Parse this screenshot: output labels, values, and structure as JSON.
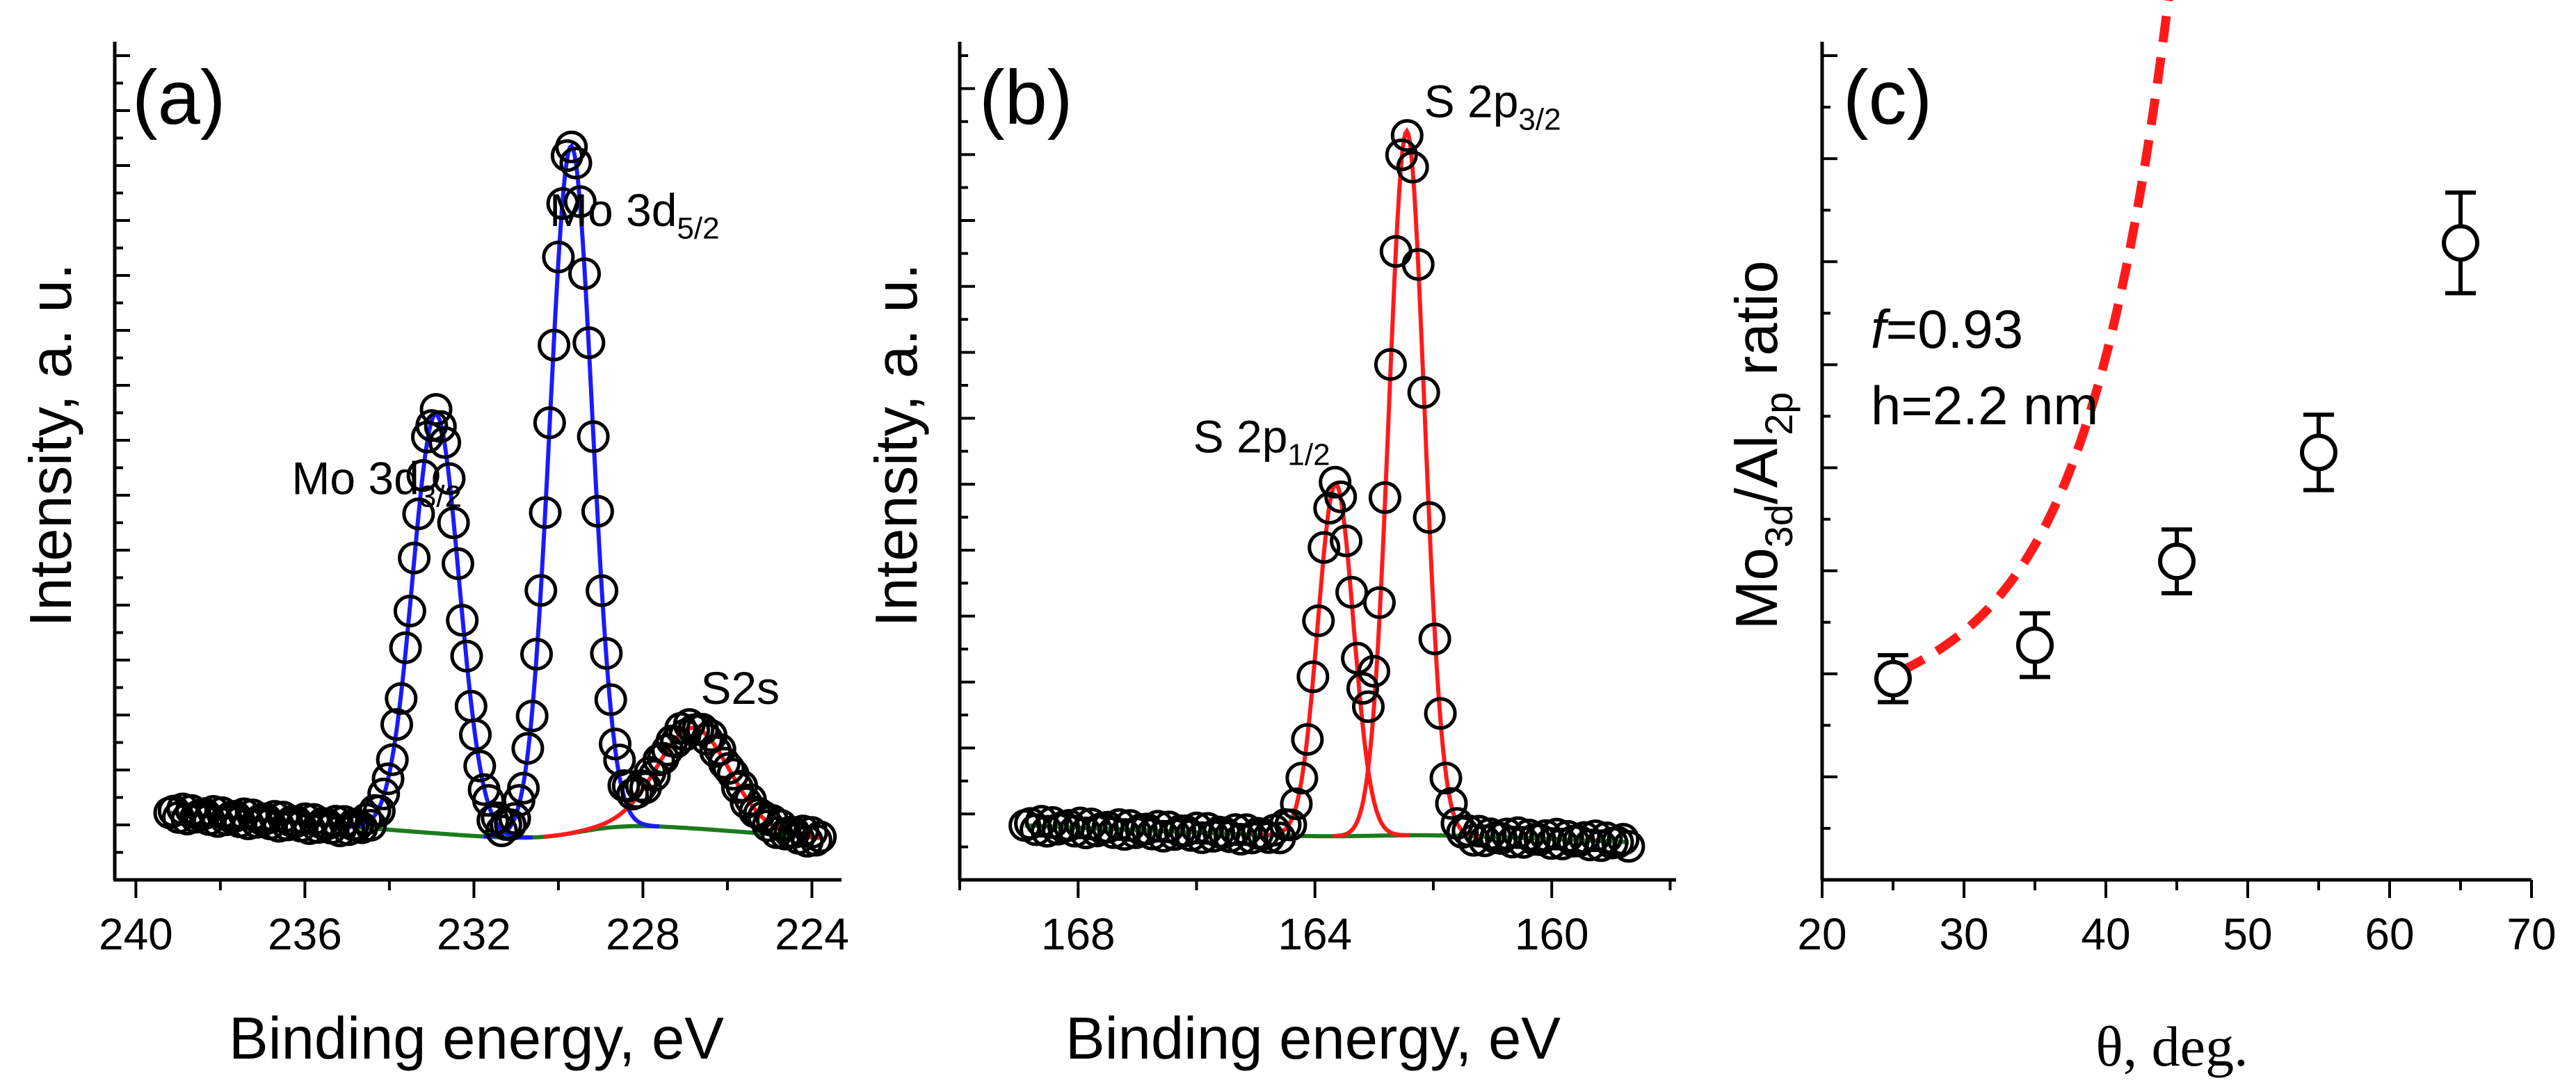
{
  "colors": {
    "axis": "#000000",
    "points": "#000000",
    "mo_fit": "#1a1aff",
    "s_fit": "#ff1a1a",
    "background_line": "#1d7a1d",
    "dashed_fit": "#ff1a1a"
  },
  "chart_data": [
    {
      "panel_label": "(a)",
      "type": "line",
      "xlabel": "Binding energy, eV",
      "ylabel": "Intensity, a. u.",
      "x_reversed": true,
      "xlim": [
        240.5,
        223.3
      ],
      "ylim": [
        0,
        1.0
      ],
      "x_ticks": [
        240,
        236,
        232,
        228,
        224
      ],
      "x_tick_labels": [
        "240",
        "236",
        "232",
        "228",
        "224"
      ],
      "background": {
        "name": "background",
        "start": 0.11,
        "end": 0.05,
        "step_center": 229.5,
        "step_height": 0.03
      },
      "peaks": [
        {
          "name": "Mo 3d3/2",
          "center": 232.9,
          "height": 0.5,
          "width": 0.55,
          "fit_color": "mo"
        },
        {
          "name": "Mo 3d5/2",
          "center": 229.7,
          "height": 0.82,
          "width": 0.5,
          "fit_color": "mo"
        },
        {
          "name": "S2s",
          "center": 226.8,
          "height": 0.12,
          "width": 0.85,
          "fit_color": "s"
        }
      ],
      "points_range": [
        239.2,
        223.8
      ],
      "points_count": 150,
      "annotations": [
        {
          "base": "Mo 3d",
          "sub": "3/2",
          "x": 234.3,
          "y": 0.46
        },
        {
          "base": "Mo 3d",
          "sub": "5/2",
          "x": 228.2,
          "y": 0.78
        },
        {
          "base": "S2s",
          "sub": "",
          "x": 225.7,
          "y": 0.21
        }
      ]
    },
    {
      "panel_label": "(b)",
      "type": "line",
      "xlabel": "Binding energy, eV",
      "ylabel": "Intensity, a. u.",
      "x_reversed": true,
      "xlim": [
        170.0,
        157.9
      ],
      "ylim": [
        0,
        1.0
      ],
      "x_ticks": [
        168,
        164,
        160
      ],
      "x_tick_labels": [
        "168",
        "164",
        "160"
      ],
      "background": {
        "name": "background",
        "start": 0.075,
        "end": 0.045,
        "step_center": 163.0,
        "step_height": 0.01
      },
      "peaks": [
        {
          "name": "S 2p1/2",
          "center": 163.65,
          "height": 0.42,
          "width": 0.3,
          "fit_color": "s"
        },
        {
          "name": "S 2p3/2",
          "center": 162.45,
          "height": 0.84,
          "width": 0.3,
          "fit_color": "s"
        }
      ],
      "points_range": [
        168.9,
        158.7
      ],
      "points_count": 110,
      "annotations": [
        {
          "base": "S 2p",
          "sub": "1/2",
          "x": 164.9,
          "y": 0.51
        },
        {
          "base": "S 2p",
          "sub": "3/2",
          "x": 161.0,
          "y": 0.91
        }
      ]
    },
    {
      "panel_label": "(c)",
      "type": "scatter",
      "xlabel": "θ, deg.",
      "ylabel": {
        "base1": "Mo",
        "sub1": "3d",
        "base2": "/Al",
        "sub2": "2p",
        "rest": " ratio"
      },
      "xlim": [
        20,
        70
      ],
      "ylim": [
        0,
        1.0
      ],
      "x_ticks": [
        20,
        30,
        40,
        50,
        60,
        70
      ],
      "x_tick_labels": [
        "20",
        "30",
        "40",
        "50",
        "60",
        "70"
      ],
      "x": [
        25,
        35,
        45,
        55,
        65
      ],
      "y": [
        0.24,
        0.28,
        0.38,
        0.51,
        0.76
      ],
      "yerr": [
        0.028,
        0.038,
        0.038,
        0.045,
        0.06
      ],
      "fit_curve": {
        "name": "fit",
        "style": "dashed",
        "x_from": 25.5,
        "x_to": 64.5,
        "a": 0.245,
        "b": 0.0283,
        "c": 0.00265,
        "k": 0.171
      },
      "text_lines": [
        {
          "italic": "f",
          "rest": "=0.93"
        },
        {
          "italic": "",
          "rest": "h=2.2 nm"
        }
      ]
    }
  ]
}
